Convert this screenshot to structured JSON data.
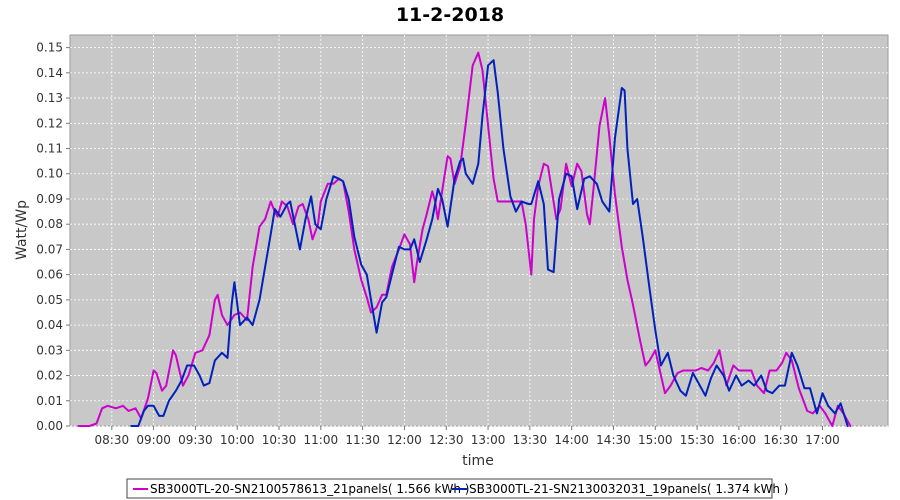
{
  "chart_data": {
    "type": "line",
    "title": "11-2-2018",
    "xlabel": "time",
    "ylabel": "Watt/Wp",
    "xlim": [
      "08:00",
      "17:47"
    ],
    "ylim": [
      0,
      0.155
    ],
    "x_ticks": [
      "08:30",
      "09:00",
      "09:30",
      "10:00",
      "10:30",
      "11:00",
      "11:30",
      "12:00",
      "12:30",
      "13:00",
      "13:30",
      "14:00",
      "14:30",
      "15:00",
      "15:30",
      "16:00",
      "16:30",
      "17:00"
    ],
    "y_ticks": [
      "0.00",
      "0.01",
      "0.02",
      "0.03",
      "0.04",
      "0.05",
      "0.06",
      "0.07",
      "0.08",
      "0.09",
      "0.10",
      "0.11",
      "0.12",
      "0.13",
      "0.14",
      "0.15"
    ],
    "grid": true,
    "legend_position": "bottom",
    "background_color": "#c8c8c8",
    "series": [
      {
        "name": "SB3000TL-20-SN2100578613_21panels( 1.566 kWh )",
        "color": "#cc00cc",
        "points": [
          [
            "08:06",
            0.0
          ],
          [
            "08:14",
            0.0
          ],
          [
            "08:19",
            0.001
          ],
          [
            "08:23",
            0.007
          ],
          [
            "08:27",
            0.008
          ],
          [
            "08:33",
            0.007
          ],
          [
            "08:38",
            0.008
          ],
          [
            "08:42",
            0.006
          ],
          [
            "08:47",
            0.007
          ],
          [
            "08:51",
            0.003
          ],
          [
            "08:56",
            0.011
          ],
          [
            "09:00",
            0.022
          ],
          [
            "09:02",
            0.021
          ],
          [
            "09:06",
            0.014
          ],
          [
            "09:09",
            0.016
          ],
          [
            "09:14",
            0.03
          ],
          [
            "09:16",
            0.028
          ],
          [
            "09:21",
            0.016
          ],
          [
            "09:25",
            0.02
          ],
          [
            "09:30",
            0.029
          ],
          [
            "09:35",
            0.03
          ],
          [
            "09:40",
            0.036
          ],
          [
            "09:44",
            0.05
          ],
          [
            "09:46",
            0.052
          ],
          [
            "09:49",
            0.044
          ],
          [
            "09:53",
            0.04
          ],
          [
            "09:58",
            0.044
          ],
          [
            "10:02",
            0.045
          ],
          [
            "10:07",
            0.042
          ],
          [
            "10:11",
            0.063
          ],
          [
            "10:16",
            0.079
          ],
          [
            "10:20",
            0.082
          ],
          [
            "10:24",
            0.089
          ],
          [
            "10:27",
            0.085
          ],
          [
            "10:29",
            0.083
          ],
          [
            "10:32",
            0.089
          ],
          [
            "10:36",
            0.087
          ],
          [
            "10:40",
            0.08
          ],
          [
            "10:44",
            0.087
          ],
          [
            "10:47",
            0.088
          ],
          [
            "10:51",
            0.082
          ],
          [
            "10:54",
            0.074
          ],
          [
            "10:58",
            0.08
          ],
          [
            "11:00",
            0.089
          ],
          [
            "11:05",
            0.096
          ],
          [
            "11:09",
            0.096
          ],
          [
            "11:13",
            0.098
          ],
          [
            "11:16",
            0.097
          ],
          [
            "11:20",
            0.085
          ],
          [
            "11:24",
            0.07
          ],
          [
            "11:29",
            0.058
          ],
          [
            "11:33",
            0.051
          ],
          [
            "11:36",
            0.045
          ],
          [
            "11:40",
            0.047
          ],
          [
            "11:44",
            0.052
          ],
          [
            "11:47",
            0.052
          ],
          [
            "11:51",
            0.063
          ],
          [
            "11:56",
            0.07
          ],
          [
            "12:00",
            0.076
          ],
          [
            "12:04",
            0.072
          ],
          [
            "12:07",
            0.057
          ],
          [
            "12:09",
            0.065
          ],
          [
            "12:13",
            0.078
          ],
          [
            "12:16",
            0.084
          ],
          [
            "12:20",
            0.093
          ],
          [
            "12:22",
            0.089
          ],
          [
            "12:24",
            0.082
          ],
          [
            "12:27",
            0.093
          ],
          [
            "12:31",
            0.107
          ],
          [
            "12:33",
            0.106
          ],
          [
            "12:36",
            0.096
          ],
          [
            "12:40",
            0.103
          ],
          [
            "12:44",
            0.12
          ],
          [
            "12:49",
            0.143
          ],
          [
            "12:53",
            0.148
          ],
          [
            "12:56",
            0.141
          ],
          [
            "13:00",
            0.119
          ],
          [
            "13:04",
            0.098
          ],
          [
            "13:07",
            0.089
          ],
          [
            "13:11",
            0.089
          ],
          [
            "13:16",
            0.089
          ],
          [
            "13:20",
            0.089
          ],
          [
            "13:24",
            0.089
          ],
          [
            "13:27",
            0.08
          ],
          [
            "13:31",
            0.06
          ],
          [
            "13:33",
            0.082
          ],
          [
            "13:36",
            0.095
          ],
          [
            "13:40",
            0.104
          ],
          [
            "13:43",
            0.103
          ],
          [
            "13:45",
            0.096
          ],
          [
            "13:49",
            0.082
          ],
          [
            "13:52",
            0.086
          ],
          [
            "13:56",
            0.104
          ],
          [
            "14:00",
            0.095
          ],
          [
            "14:04",
            0.104
          ],
          [
            "14:07",
            0.101
          ],
          [
            "14:11",
            0.084
          ],
          [
            "14:13",
            0.08
          ],
          [
            "14:16",
            0.096
          ],
          [
            "14:20",
            0.119
          ],
          [
            "14:24",
            0.13
          ],
          [
            "14:27",
            0.115
          ],
          [
            "14:31",
            0.092
          ],
          [
            "14:36",
            0.071
          ],
          [
            "14:40",
            0.058
          ],
          [
            "14:44",
            0.048
          ],
          [
            "14:49",
            0.034
          ],
          [
            "14:53",
            0.024
          ],
          [
            "14:56",
            0.026
          ],
          [
            "15:00",
            0.03
          ],
          [
            "15:02",
            0.025
          ],
          [
            "15:07",
            0.013
          ],
          [
            "15:11",
            0.016
          ],
          [
            "15:16",
            0.021
          ],
          [
            "15:20",
            0.022
          ],
          [
            "15:24",
            0.022
          ],
          [
            "15:29",
            0.022
          ],
          [
            "15:33",
            0.023
          ],
          [
            "15:38",
            0.022
          ],
          [
            "15:42",
            0.025
          ],
          [
            "15:46",
            0.03
          ],
          [
            "15:51",
            0.016
          ],
          [
            "15:56",
            0.024
          ],
          [
            "16:00",
            0.022
          ],
          [
            "16:04",
            0.022
          ],
          [
            "16:09",
            0.022
          ],
          [
            "16:13",
            0.016
          ],
          [
            "16:18",
            0.013
          ],
          [
            "16:22",
            0.022
          ],
          [
            "16:27",
            0.022
          ],
          [
            "16:31",
            0.025
          ],
          [
            "16:34",
            0.029
          ],
          [
            "16:38",
            0.026
          ],
          [
            "16:43",
            0.015
          ],
          [
            "16:49",
            0.006
          ],
          [
            "16:53",
            0.005
          ],
          [
            "16:58",
            0.008
          ],
          [
            "17:02",
            0.005
          ],
          [
            "17:07",
            0.0
          ],
          [
            "17:11",
            0.008
          ],
          [
            "17:15",
            0.005
          ],
          [
            "17:20",
            0.0
          ]
        ]
      },
      {
        "name": "SB3000TL-21-SN2130032031_19panels( 1.374 kWh )",
        "color": "#0022bb",
        "points": [
          [
            "08:44",
            0.0
          ],
          [
            "08:49",
            0.0
          ],
          [
            "08:53",
            0.006
          ],
          [
            "08:56",
            0.008
          ],
          [
            "09:00",
            0.008
          ],
          [
            "09:04",
            0.004
          ],
          [
            "09:07",
            0.004
          ],
          [
            "09:11",
            0.01
          ],
          [
            "09:16",
            0.014
          ],
          [
            "09:20",
            0.018
          ],
          [
            "09:24",
            0.024
          ],
          [
            "09:29",
            0.024
          ],
          [
            "09:33",
            0.02
          ],
          [
            "09:36",
            0.016
          ],
          [
            "09:40",
            0.017
          ],
          [
            "09:44",
            0.026
          ],
          [
            "09:49",
            0.029
          ],
          [
            "09:53",
            0.027
          ],
          [
            "09:56",
            0.048
          ],
          [
            "09:58",
            0.057
          ],
          [
            "10:02",
            0.04
          ],
          [
            "10:07",
            0.043
          ],
          [
            "10:11",
            0.04
          ],
          [
            "10:16",
            0.05
          ],
          [
            "10:20",
            0.063
          ],
          [
            "10:24",
            0.076
          ],
          [
            "10:27",
            0.086
          ],
          [
            "10:31",
            0.083
          ],
          [
            "10:36",
            0.088
          ],
          [
            "10:38",
            0.089
          ],
          [
            "10:42",
            0.078
          ],
          [
            "10:45",
            0.07
          ],
          [
            "10:49",
            0.082
          ],
          [
            "10:53",
            0.091
          ],
          [
            "10:56",
            0.08
          ],
          [
            "11:00",
            0.078
          ],
          [
            "11:04",
            0.09
          ],
          [
            "11:09",
            0.099
          ],
          [
            "11:13",
            0.098
          ],
          [
            "11:16",
            0.097
          ],
          [
            "11:20",
            0.09
          ],
          [
            "11:24",
            0.075
          ],
          [
            "11:29",
            0.064
          ],
          [
            "11:33",
            0.06
          ],
          [
            "11:36",
            0.05
          ],
          [
            "11:40",
            0.037
          ],
          [
            "11:44",
            0.049
          ],
          [
            "11:47",
            0.051
          ],
          [
            "11:51",
            0.06
          ],
          [
            "11:56",
            0.071
          ],
          [
            "12:00",
            0.07
          ],
          [
            "12:04",
            0.07
          ],
          [
            "12:07",
            0.074
          ],
          [
            "12:11",
            0.065
          ],
          [
            "12:16",
            0.074
          ],
          [
            "12:20",
            0.082
          ],
          [
            "12:24",
            0.094
          ],
          [
            "12:27",
            0.09
          ],
          [
            "12:31",
            0.079
          ],
          [
            "12:36",
            0.098
          ],
          [
            "12:40",
            0.105
          ],
          [
            "12:42",
            0.106
          ],
          [
            "12:44",
            0.1
          ],
          [
            "12:49",
            0.096
          ],
          [
            "12:53",
            0.104
          ],
          [
            "12:56",
            0.123
          ],
          [
            "13:00",
            0.143
          ],
          [
            "13:04",
            0.145
          ],
          [
            "13:07",
            0.132
          ],
          [
            "13:11",
            0.11
          ],
          [
            "13:16",
            0.091
          ],
          [
            "13:20",
            0.085
          ],
          [
            "13:24",
            0.089
          ],
          [
            "13:29",
            0.088
          ],
          [
            "13:31",
            0.088
          ],
          [
            "13:36",
            0.097
          ],
          [
            "13:40",
            0.088
          ],
          [
            "13:43",
            0.062
          ],
          [
            "13:47",
            0.061
          ],
          [
            "13:51",
            0.09
          ],
          [
            "13:56",
            0.1
          ],
          [
            "14:00",
            0.099
          ],
          [
            "14:04",
            0.086
          ],
          [
            "14:09",
            0.098
          ],
          [
            "14:13",
            0.099
          ],
          [
            "14:18",
            0.096
          ],
          [
            "14:22",
            0.089
          ],
          [
            "14:27",
            0.085
          ],
          [
            "14:31",
            0.114
          ],
          [
            "14:36",
            0.134
          ],
          [
            "14:38",
            0.133
          ],
          [
            "14:40",
            0.11
          ],
          [
            "14:44",
            0.088
          ],
          [
            "14:47",
            0.09
          ],
          [
            "14:51",
            0.075
          ],
          [
            "14:56",
            0.054
          ],
          [
            "15:00",
            0.038
          ],
          [
            "15:04",
            0.024
          ],
          [
            "15:09",
            0.029
          ],
          [
            "15:13",
            0.02
          ],
          [
            "15:18",
            0.014
          ],
          [
            "15:22",
            0.012
          ],
          [
            "15:27",
            0.021
          ],
          [
            "15:31",
            0.017
          ],
          [
            "15:36",
            0.012
          ],
          [
            "15:40",
            0.019
          ],
          [
            "15:44",
            0.024
          ],
          [
            "15:49",
            0.02
          ],
          [
            "15:53",
            0.014
          ],
          [
            "15:58",
            0.02
          ],
          [
            "16:02",
            0.016
          ],
          [
            "16:07",
            0.018
          ],
          [
            "16:11",
            0.016
          ],
          [
            "16:16",
            0.02
          ],
          [
            "16:20",
            0.014
          ],
          [
            "16:24",
            0.013
          ],
          [
            "16:29",
            0.016
          ],
          [
            "16:33",
            0.016
          ],
          [
            "16:38",
            0.029
          ],
          [
            "16:42",
            0.024
          ],
          [
            "16:47",
            0.015
          ],
          [
            "16:51",
            0.015
          ],
          [
            "16:56",
            0.005
          ],
          [
            "17:00",
            0.013
          ],
          [
            "17:04",
            0.008
          ],
          [
            "17:09",
            0.005
          ],
          [
            "17:13",
            0.009
          ],
          [
            "17:18",
            0.0
          ]
        ]
      }
    ]
  }
}
